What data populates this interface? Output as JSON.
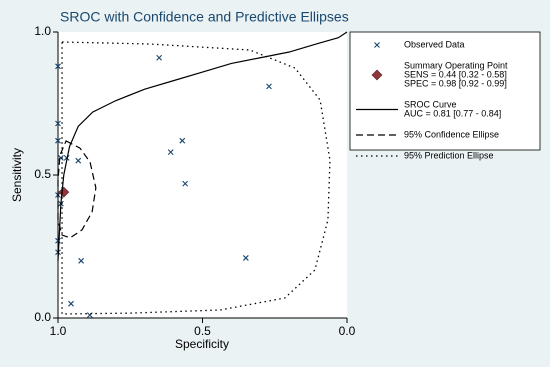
{
  "chart_data": {
    "type": "scatter",
    "title": "SROC with Confidence and Predictive Ellipses",
    "x_label": "Specificity",
    "y_label": "Sensitivity",
    "xlim": [
      1,
      0
    ],
    "ylim": [
      0,
      1
    ],
    "xticks": [
      {
        "value": 1,
        "label": "1.0"
      },
      {
        "value": 0.5,
        "label": "0.5"
      },
      {
        "value": 0,
        "label": "0.0"
      }
    ],
    "yticks": [
      {
        "value": 0,
        "label": "0.0"
      },
      {
        "value": 0.5,
        "label": "0.5"
      },
      {
        "value": 1,
        "label": "1.0"
      }
    ],
    "series": [
      {
        "name": "Observed Data",
        "color": "#1a476f",
        "marker": "x",
        "x": [
          0.65,
          0.27,
          0.57,
          0.61,
          0.56,
          0.35,
          0.92,
          0.955,
          0.93,
          0.97,
          1.0,
          1.0,
          1.0,
          0.99,
          1.0,
          0.99,
          1.0,
          1.0,
          0.89
        ],
        "y": [
          0.91,
          0.81,
          0.62,
          0.58,
          0.47,
          0.21,
          0.2,
          0.05,
          0.55,
          0.56,
          0.88,
          0.68,
          0.62,
          0.56,
          0.43,
          0.4,
          0.27,
          0.23,
          0.01
        ]
      },
      {
        "name": "Summary Operating Point",
        "color": "#90353b",
        "marker": "diamond",
        "details": [
          "SENS = 0.44 [0.32 - 0.58]",
          "SPEC = 0.98 [0.92 - 0.99]"
        ],
        "x": [
          0.98
        ],
        "y": [
          0.44
        ]
      },
      {
        "name": "SROC Curve",
        "color": "#000000",
        "line": "solid",
        "details": [
          "AUC = 0.81 [0.77 - 0.84]"
        ],
        "x": [
          1.0,
          0.995,
          0.99,
          0.98,
          0.96,
          0.93,
          0.88,
          0.8,
          0.7,
          0.6,
          0.5,
          0.4,
          0.3,
          0.2,
          0.1,
          0.03,
          0.0
        ],
        "y": [
          0.2,
          0.3,
          0.4,
          0.5,
          0.6,
          0.67,
          0.72,
          0.76,
          0.8,
          0.83,
          0.86,
          0.89,
          0.91,
          0.93,
          0.96,
          0.98,
          1.0
        ]
      },
      {
        "name": "95% Confidence Ellipse",
        "color": "#000000",
        "line": "dashed",
        "x": [
          0.972,
          0.924,
          0.889,
          0.869,
          0.882,
          0.917,
          0.958,
          0.986,
          1.0,
          1.0,
          0.993
        ],
        "y": [
          0.619,
          0.594,
          0.545,
          0.455,
          0.371,
          0.308,
          0.28,
          0.29,
          0.343,
          0.483,
          0.57
        ]
      },
      {
        "name": "95% Prediction Ellipse",
        "color": "#000000",
        "line": "dotted",
        "x": [
          0.986,
          0.682,
          0.336,
          0.18,
          0.093,
          0.059,
          0.066,
          0.111,
          0.215,
          0.439,
          0.751,
          0.986
        ],
        "y": [
          0.965,
          0.958,
          0.937,
          0.874,
          0.762,
          0.552,
          0.343,
          0.168,
          0.07,
          0.028,
          0.017,
          0.014
        ]
      }
    ]
  }
}
